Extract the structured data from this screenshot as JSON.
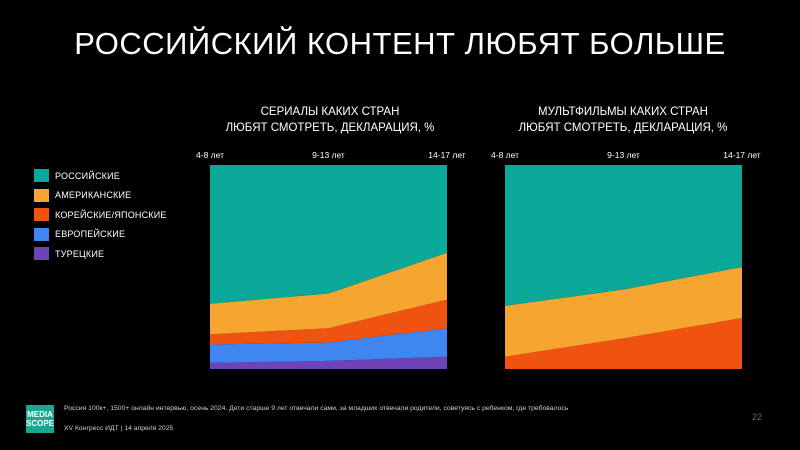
{
  "title": "РОССИЙСКИЙ КОНТЕНТ ЛЮБЯТ БОЛЬШЕ",
  "legend": [
    {
      "label": "РОССИЙСКИЕ",
      "color": "#0aa898"
    },
    {
      "label": "АМЕРИКАНСКИЕ",
      "color": "#f6a630"
    },
    {
      "label": "КОРЕЙСКИЕ/ЯПОНСКИЕ",
      "color": "#f0520f"
    },
    {
      "label": "ЕВРОПЕЙСКИЕ",
      "color": "#3f86f0"
    },
    {
      "label": "ТУРЕЦКИЕ",
      "color": "#6f43b8"
    }
  ],
  "chart_data": [
    {
      "type": "area",
      "title_line1": "СЕРИАЛЫ КАКИХ СТРАН",
      "title_line2": "ЛЮБЯТ СМОТРЕТЬ, ДЕКЛАРАЦИЯ, %",
      "x": [
        "4-8 лет",
        "9-13 лет",
        "14-17 лет"
      ],
      "ylim": [
        0,
        100
      ],
      "series": [
        {
          "name": "ТУРЕЦКИЕ",
          "color": "#6f43b8",
          "values": [
            3,
            4,
            6
          ]
        },
        {
          "name": "ЕВРОПЕЙСКИЕ",
          "color": "#3f86f0",
          "values": [
            9,
            9,
            14
          ]
        },
        {
          "name": "КОРЕЙСКИЕ/ЯПОНСКИЕ",
          "color": "#f0520f",
          "values": [
            5,
            7,
            14
          ]
        },
        {
          "name": "АМЕРИКАНСКИЕ",
          "color": "#f6a630",
          "values": [
            15,
            17,
            23
          ]
        },
        {
          "name": "РОССИЙСКИЕ",
          "color": "#0aa898",
          "values": [
            68,
            63,
            43
          ]
        }
      ]
    },
    {
      "type": "area",
      "title_line1": "МУЛЬТФИЛЬМЫ КАКИХ СТРАН",
      "title_line2": "ЛЮБЯТ СМОТРЕТЬ, ДЕКЛАРАЦИЯ, %",
      "x": [
        "4-8 лет",
        "9-13 лет",
        "14-17 лет"
      ],
      "ylim": [
        0,
        100
      ],
      "series": [
        {
          "name": "КОРЕЙСКИЕ/ЯПОНСКИЕ",
          "color": "#f0520f",
          "values": [
            6,
            15,
            25
          ]
        },
        {
          "name": "АМЕРИКАНСКИЕ",
          "color": "#f6a630",
          "values": [
            25,
            24,
            25
          ]
        },
        {
          "name": "РОССИЙСКИЕ",
          "color": "#0aa898",
          "values": [
            69,
            61,
            50
          ]
        }
      ]
    }
  ],
  "footer": {
    "logo_line1": "MEDIA",
    "logo_line2": "SCOPE",
    "note": "Россия 100к+, 1500+ онлайн интервью, осень 2024. Дети старше 9 лет отвечали сами, за младших отвечали родители, советуясь с ребенком, где требовалось",
    "event": "XV Конгресс ИДТ | 14 апреля 2025",
    "page": "22"
  }
}
